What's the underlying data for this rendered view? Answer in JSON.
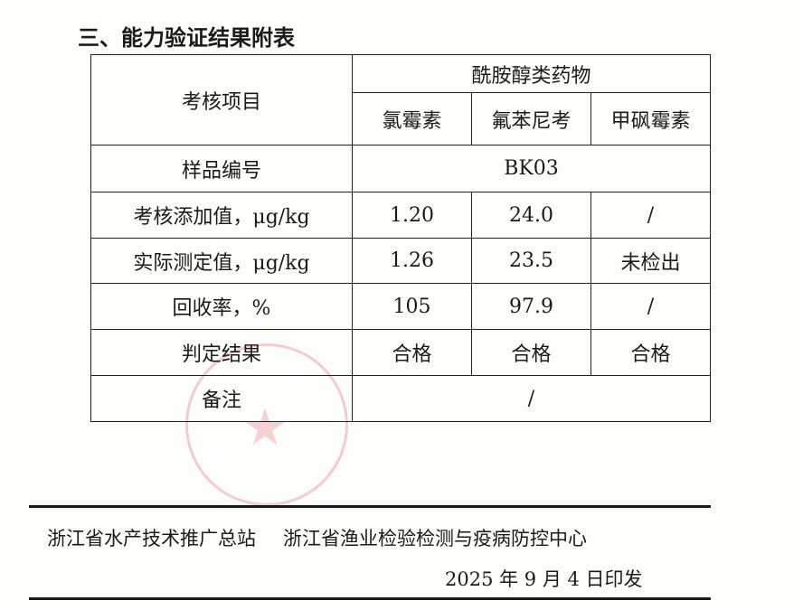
{
  "title": "三、能力验证结果附表",
  "table": {
    "item_header": "考核项目",
    "group_header": "酰胺醇类药物",
    "drugs": [
      "氯霉素",
      "氟苯尼考",
      "甲砜霉素"
    ],
    "sample_label": "样品编号",
    "sample_id": "BK03",
    "rows": [
      {
        "label": "考核添加值，μg/kg",
        "values": [
          "1.20",
          "24.0",
          "/"
        ]
      },
      {
        "label": "实际测定值，μg/kg",
        "values": [
          "1.26",
          "23.5",
          "未检出"
        ]
      },
      {
        "label": "回收率，%",
        "values": [
          "105",
          "97.9",
          "/"
        ]
      },
      {
        "label": "判定结果",
        "values": [
          "合格",
          "合格",
          "合格"
        ]
      }
    ],
    "remark_label": "备注",
    "remark_value": "/"
  },
  "footer": {
    "org1": "浙江省水产技术推广总站",
    "org2": "浙江省渔业检验检测与疫病防控中心",
    "date": "2025 年 9 月 4 日印发"
  },
  "colors": {
    "stamp": "#dc505a"
  }
}
